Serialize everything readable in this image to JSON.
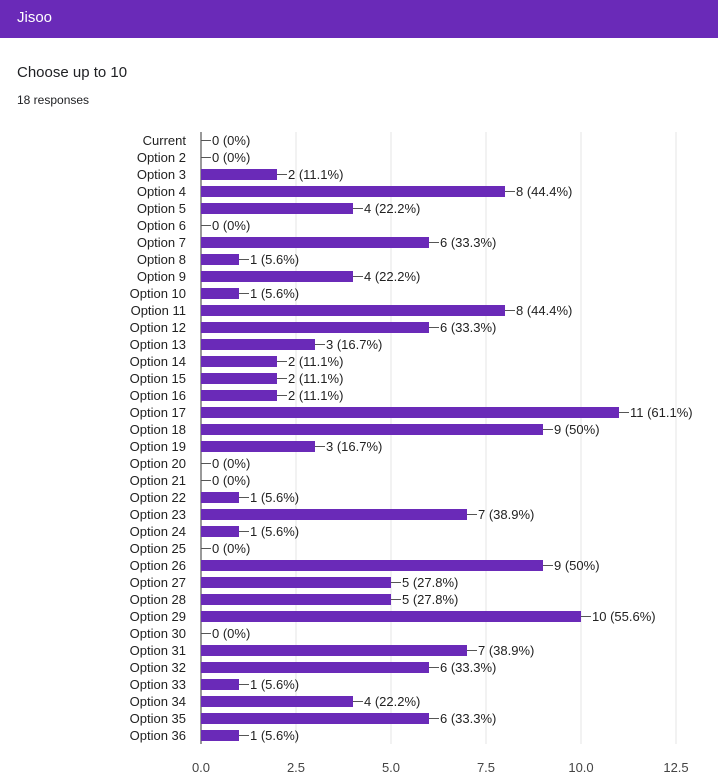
{
  "header": {
    "title": "Jisoo"
  },
  "question": {
    "title": "Choose up to 10",
    "responses": "18 responses"
  },
  "colors": {
    "header": "#6a2ab8",
    "bar": "#6a2ab8",
    "grid": "#e6e6e6"
  },
  "chart_data": {
    "type": "bar",
    "orientation": "horizontal",
    "categories": [
      "Current",
      "Option 2",
      "Option 3",
      "Option 4",
      "Option 5",
      "Option 6",
      "Option 7",
      "Option 8",
      "Option 9",
      "Option 10",
      "Option 11",
      "Option 12",
      "Option 13",
      "Option 14",
      "Option 15",
      "Option 16",
      "Option 17",
      "Option 18",
      "Option 19",
      "Option 20",
      "Option 21",
      "Option 22",
      "Option 23",
      "Option 24",
      "Option 25",
      "Option 26",
      "Option 27",
      "Option 28",
      "Option 29",
      "Option 30",
      "Option 31",
      "Option 32",
      "Option 33",
      "Option 34",
      "Option 35",
      "Option 36"
    ],
    "values": [
      0,
      0,
      2,
      8,
      4,
      0,
      6,
      1,
      4,
      1,
      8,
      6,
      3,
      2,
      2,
      2,
      11,
      9,
      3,
      0,
      0,
      1,
      7,
      1,
      0,
      9,
      5,
      5,
      10,
      0,
      7,
      6,
      1,
      4,
      6,
      1
    ],
    "data_labels": [
      "0 (0%)",
      "0 (0%)",
      "2 (11.1%)",
      "8 (44.4%)",
      "4 (22.2%)",
      "0 (0%)",
      "6 (33.3%)",
      "1 (5.6%)",
      "4 (22.2%)",
      "1 (5.6%)",
      "8 (44.4%)",
      "6 (33.3%)",
      "3 (16.7%)",
      "2 (11.1%)",
      "2 (11.1%)",
      "2 (11.1%)",
      "11 (61.1%)",
      "9 (50%)",
      "3 (16.7%)",
      "0 (0%)",
      "0 (0%)",
      "1 (5.6%)",
      "7 (38.9%)",
      "1 (5.6%)",
      "0 (0%)",
      "9 (50%)",
      "5 (27.8%)",
      "5 (27.8%)",
      "10 (55.6%)",
      "0 (0%)",
      "7 (38.9%)",
      "6 (33.3%)",
      "1 (5.6%)",
      "4 (22.2%)",
      "6 (33.3%)",
      "1 (5.6%)"
    ],
    "xticks": [
      "0.0",
      "2.5",
      "5.0",
      "7.5",
      "10.0",
      "12.5"
    ],
    "xlim": [
      0,
      12.5
    ],
    "grid": true,
    "title": "",
    "xlabel": "",
    "ylabel": ""
  }
}
